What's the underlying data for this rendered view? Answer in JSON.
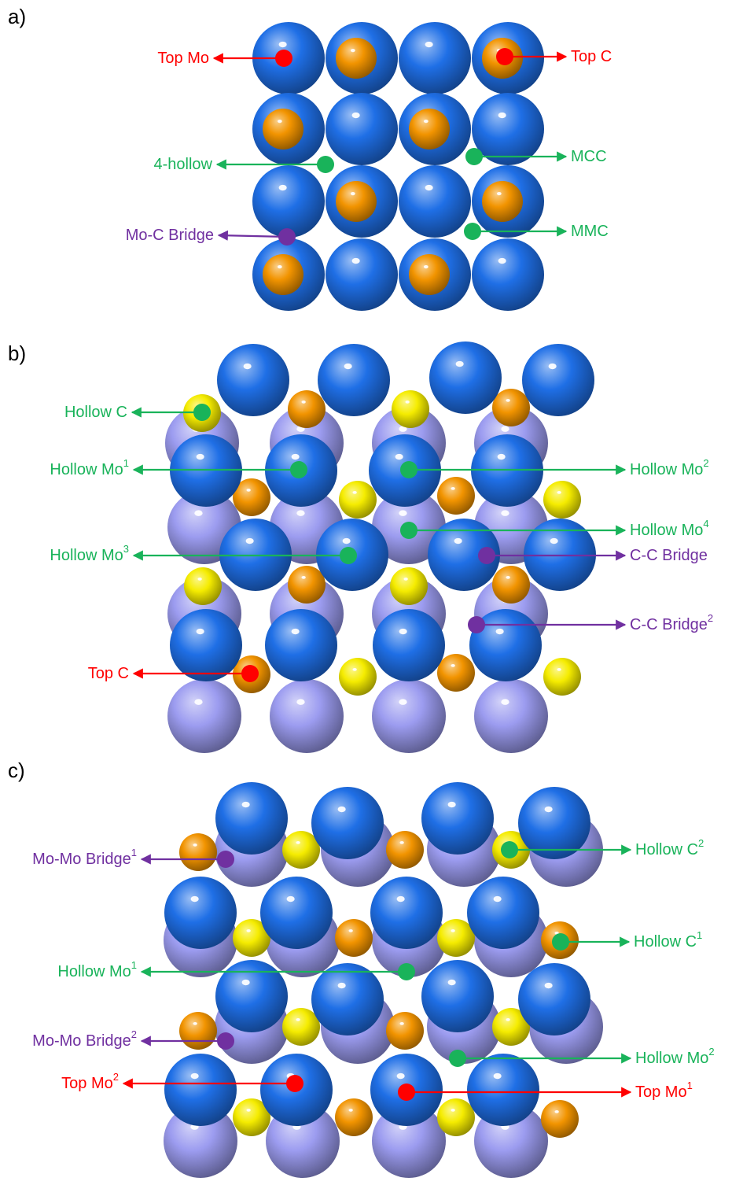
{
  "colors": {
    "mo_top": "#1f6fe6",
    "mo_lower": "#9c9cf0",
    "c_orange": "#f29400",
    "c_yellow": "#f5ec00",
    "top_site": "#ff0000",
    "hollow_site": "#19b35a",
    "bridge_site": "#7030a0"
  },
  "panels": [
    {
      "letter": "a)",
      "labels": [
        {
          "text": "Top Mo",
          "sup": "",
          "kind": "top"
        },
        {
          "text": "Top C",
          "sup": "",
          "kind": "top"
        },
        {
          "text": "4-hollow",
          "sup": "",
          "kind": "hollow"
        },
        {
          "text": "MCC",
          "sup": "",
          "kind": "hollow"
        },
        {
          "text": "Mo-C Bridge",
          "sup": "",
          "kind": "bridge"
        },
        {
          "text": "MMC",
          "sup": "",
          "kind": "hollow"
        }
      ]
    },
    {
      "letter": "b)",
      "labels": [
        {
          "text": "Hollow C",
          "sup": "",
          "kind": "hollow"
        },
        {
          "text": "Hollow Mo",
          "sup": "1",
          "kind": "hollow"
        },
        {
          "text": "Hollow Mo",
          "sup": "2",
          "kind": "hollow"
        },
        {
          "text": "Hollow Mo",
          "sup": "4",
          "kind": "hollow"
        },
        {
          "text": "Hollow Mo",
          "sup": "3",
          "kind": "hollow"
        },
        {
          "text": "C-C Bridge",
          "sup": "",
          "kind": "bridge"
        },
        {
          "text": "C-C Bridge",
          "sup": "2",
          "kind": "bridge"
        },
        {
          "text": "Top C",
          "sup": "",
          "kind": "top"
        }
      ]
    },
    {
      "letter": "c)",
      "labels": [
        {
          "text": "Mo-Mo Bridge",
          "sup": "1",
          "kind": "bridge"
        },
        {
          "text": "Hollow C",
          "sup": "2",
          "kind": "hollow"
        },
        {
          "text": "Hollow C",
          "sup": "1",
          "kind": "hollow"
        },
        {
          "text": "Hollow Mo",
          "sup": "1",
          "kind": "hollow"
        },
        {
          "text": "Mo-Mo Bridge",
          "sup": "2",
          "kind": "bridge"
        },
        {
          "text": "Hollow Mo",
          "sup": "2",
          "kind": "hollow"
        },
        {
          "text": "Top Mo",
          "sup": "2",
          "kind": "top"
        },
        {
          "text": "Top Mo",
          "sup": "1",
          "kind": "top"
        }
      ]
    }
  ]
}
